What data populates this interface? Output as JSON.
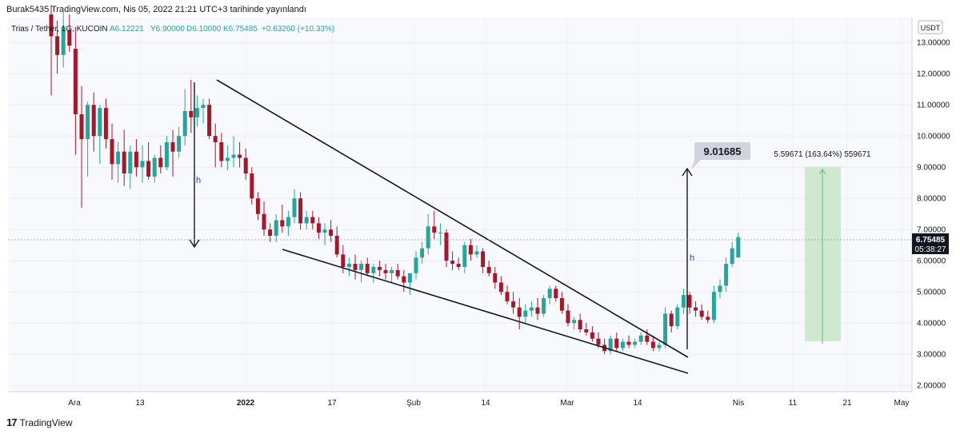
{
  "header": {
    "publish_line": "Burak5435 TradingView.com, Nis 05, 2022 21:21 UTC+3 tarihinde yayınlandı"
  },
  "legend": {
    "symbol": "Trias / Tether, 1G, KUCOIN",
    "open": "A6.12221",
    "high": "Y6.90000",
    "low": "D6.10000",
    "close": "K6.75485",
    "change": "+0.63260 (+10.33%)"
  },
  "price_scale": {
    "currency": "USDT",
    "labels": [
      "13.00000",
      "12.00000",
      "11.00000",
      "10.00000",
      "9.00000",
      "8.00000",
      "7.00000",
      "6.00000",
      "5.00000",
      "4.00000",
      "3.00000",
      "2.00000"
    ],
    "last_price": "6.75485",
    "countdown": "05:38:27"
  },
  "time_axis": {
    "labels": [
      "Ara",
      "13",
      "2022",
      "17",
      "Şub",
      "14",
      "Mar",
      "14",
      "Nis",
      "11",
      "21",
      "May"
    ]
  },
  "annotations": {
    "target_label": "9.01685",
    "measure_label": "5.59671 (163.64%) 559671",
    "h_marker_1": "h",
    "h_marker_2": "h"
  },
  "footer": {
    "brand": "TradingView"
  },
  "colors": {
    "up": "#26a69a",
    "down": "#a5172b",
    "last_price_bg": "#131722",
    "range_fill": "#c8e6c9"
  },
  "chart_data": {
    "type": "candlestick",
    "title": "Trias / Tether, 1G, KUCOIN",
    "ylabel": "USDT",
    "ylim": [
      1.8,
      13.8
    ],
    "x_ticks": [
      "Ara",
      "13",
      "2022",
      "17",
      "Şub",
      "14",
      "Mar",
      "14",
      "Nis",
      "11",
      "21",
      "May"
    ],
    "last_close": 6.75485,
    "target": 9.01685,
    "measure": {
      "from": 3.42,
      "to": 9.01685,
      "text": "5.59671 (163.64%) 559671"
    },
    "candles": [
      [
        13.9,
        14.2,
        11.3,
        13.2
      ],
      [
        13.2,
        13.7,
        12.0,
        12.6
      ],
      [
        12.6,
        14.0,
        12.2,
        13.5
      ],
      [
        13.4,
        13.9,
        12.7,
        12.9
      ],
      [
        12.8,
        13.5,
        9.4,
        10.7
      ],
      [
        10.7,
        11.6,
        7.7,
        9.9
      ],
      [
        9.9,
        11.1,
        8.7,
        11.0
      ],
      [
        11.0,
        11.4,
        9.5,
        10.0
      ],
      [
        10.0,
        11.0,
        9.1,
        10.9
      ],
      [
        10.9,
        11.2,
        9.6,
        9.9
      ],
      [
        9.9,
        10.4,
        8.6,
        9.1
      ],
      [
        9.1,
        9.8,
        8.5,
        9.5
      ],
      [
        9.5,
        10.2,
        8.4,
        8.8
      ],
      [
        8.8,
        9.7,
        8.3,
        9.5
      ],
      [
        9.5,
        9.9,
        8.7,
        9.0
      ],
      [
        9.0,
        9.7,
        8.5,
        9.2
      ],
      [
        9.2,
        9.8,
        8.6,
        8.7
      ],
      [
        8.7,
        9.4,
        8.5,
        9.3
      ],
      [
        9.3,
        9.7,
        8.8,
        9.0
      ],
      [
        9.0,
        10.0,
        8.9,
        9.8
      ],
      [
        9.8,
        10.2,
        8.7,
        9.5
      ],
      [
        9.5,
        10.3,
        9.3,
        10.0
      ],
      [
        10.0,
        11.5,
        9.7,
        10.8
      ],
      [
        10.8,
        11.8,
        10.1,
        10.6
      ],
      [
        10.6,
        11.3,
        10.3,
        10.9
      ],
      [
        10.9,
        11.2,
        10.4,
        11.0
      ],
      [
        11.0,
        11.2,
        9.9,
        10.0
      ],
      [
        10.0,
        10.4,
        9.0,
        9.8
      ],
      [
        9.8,
        10.1,
        9.0,
        9.2
      ],
      [
        9.2,
        9.7,
        8.9,
        9.3
      ],
      [
        9.3,
        10.0,
        9.0,
        9.4
      ],
      [
        9.4,
        9.8,
        9.0,
        9.3
      ],
      [
        9.3,
        9.6,
        8.6,
        8.8
      ],
      [
        8.8,
        9.0,
        7.8,
        8.0
      ],
      [
        8.0,
        8.2,
        7.3,
        7.5
      ],
      [
        7.5,
        7.9,
        6.8,
        7.0
      ],
      [
        7.0,
        7.2,
        6.6,
        6.8
      ],
      [
        6.8,
        7.5,
        6.6,
        7.3
      ],
      [
        7.3,
        7.8,
        6.9,
        7.1
      ],
      [
        7.1,
        7.6,
        6.8,
        7.4
      ],
      [
        7.4,
        8.3,
        7.2,
        8.0
      ],
      [
        8.0,
        8.2,
        7.0,
        7.2
      ],
      [
        7.2,
        7.6,
        7.0,
        7.4
      ],
      [
        7.4,
        7.6,
        7.0,
        7.2
      ],
      [
        7.2,
        7.4,
        6.7,
        6.9
      ],
      [
        6.9,
        7.2,
        6.5,
        7.0
      ],
      [
        7.0,
        7.3,
        6.6,
        6.8
      ],
      [
        6.8,
        7.1,
        6.1,
        6.2
      ],
      [
        6.2,
        6.5,
        5.6,
        5.8
      ],
      [
        5.8,
        6.1,
        5.5,
        5.9
      ],
      [
        5.9,
        6.2,
        5.4,
        5.7
      ],
      [
        5.7,
        6.0,
        5.3,
        5.9
      ],
      [
        5.9,
        6.1,
        5.5,
        5.6
      ],
      [
        5.6,
        5.9,
        5.3,
        5.8
      ],
      [
        5.8,
        6.0,
        5.5,
        5.7
      ],
      [
        5.7,
        5.9,
        5.4,
        5.6
      ],
      [
        5.6,
        5.8,
        5.3,
        5.7
      ],
      [
        5.7,
        5.9,
        5.4,
        5.5
      ],
      [
        5.5,
        5.7,
        5.0,
        5.3
      ],
      [
        5.3,
        5.5,
        4.9,
        5.6
      ],
      [
        5.6,
        6.3,
        5.4,
        6.1
      ],
      [
        6.1,
        6.6,
        5.9,
        6.4
      ],
      [
        6.4,
        7.5,
        6.2,
        7.1
      ],
      [
        7.1,
        7.6,
        6.7,
        6.9
      ],
      [
        6.9,
        7.2,
        6.5,
        6.9
      ],
      [
        6.9,
        7.0,
        5.8,
        6.0
      ],
      [
        6.0,
        6.3,
        5.7,
        5.9
      ],
      [
        5.9,
        6.1,
        5.7,
        5.8
      ],
      [
        5.8,
        6.6,
        5.6,
        6.5
      ],
      [
        6.5,
        6.7,
        6.0,
        6.2
      ],
      [
        6.2,
        6.5,
        6.1,
        6.3
      ],
      [
        6.3,
        6.4,
        5.6,
        5.8
      ],
      [
        5.8,
        6.0,
        5.5,
        5.6
      ],
      [
        5.6,
        5.8,
        5.1,
        5.3
      ],
      [
        5.3,
        5.5,
        4.9,
        5.0
      ],
      [
        5.0,
        5.2,
        4.6,
        4.7
      ],
      [
        4.7,
        5.0,
        4.3,
        4.5
      ],
      [
        4.5,
        4.8,
        3.8,
        4.2
      ],
      [
        4.2,
        4.6,
        4.0,
        4.4
      ],
      [
        4.4,
        4.7,
        4.2,
        4.5
      ],
      [
        4.5,
        4.8,
        4.1,
        4.3
      ],
      [
        4.3,
        4.9,
        4.2,
        4.8
      ],
      [
        4.8,
        5.2,
        4.6,
        5.1
      ],
      [
        5.1,
        5.2,
        4.7,
        4.8
      ],
      [
        4.8,
        5.0,
        4.3,
        4.4
      ],
      [
        4.4,
        4.6,
        3.9,
        4.0
      ],
      [
        4.0,
        4.2,
        3.8,
        4.1
      ],
      [
        4.1,
        4.3,
        3.7,
        3.8
      ],
      [
        3.8,
        4.0,
        3.6,
        3.7
      ],
      [
        3.7,
        3.9,
        3.4,
        3.5
      ],
      [
        3.5,
        3.7,
        3.2,
        3.3
      ],
      [
        3.3,
        3.5,
        3.0,
        3.1
      ],
      [
        3.1,
        3.6,
        3.0,
        3.5
      ],
      [
        3.5,
        3.7,
        3.1,
        3.2
      ],
      [
        3.2,
        3.5,
        3.1,
        3.4
      ],
      [
        3.4,
        3.6,
        3.2,
        3.3
      ],
      [
        3.3,
        3.5,
        3.2,
        3.4
      ],
      [
        3.4,
        3.7,
        3.3,
        3.6
      ],
      [
        3.6,
        3.8,
        3.3,
        3.4
      ],
      [
        3.4,
        3.6,
        3.1,
        3.2
      ],
      [
        3.2,
        3.4,
        3.1,
        3.3
      ],
      [
        3.3,
        4.5,
        3.2,
        4.3
      ],
      [
        4.3,
        4.4,
        3.7,
        3.9
      ],
      [
        3.9,
        4.6,
        3.8,
        4.5
      ],
      [
        4.5,
        5.1,
        4.3,
        4.9
      ],
      [
        4.9,
        5.0,
        4.3,
        4.5
      ],
      [
        4.5,
        4.7,
        4.2,
        4.4
      ],
      [
        4.4,
        4.6,
        4.1,
        4.2
      ],
      [
        4.2,
        4.4,
        4.0,
        4.1
      ],
      [
        4.1,
        5.2,
        4.0,
        5.0
      ],
      [
        5.0,
        5.4,
        4.8,
        5.2
      ],
      [
        5.2,
        6.1,
        5.0,
        5.9
      ],
      [
        5.9,
        6.6,
        5.8,
        6.4
      ],
      [
        6.1,
        6.9,
        6.1,
        6.75485
      ]
    ]
  }
}
